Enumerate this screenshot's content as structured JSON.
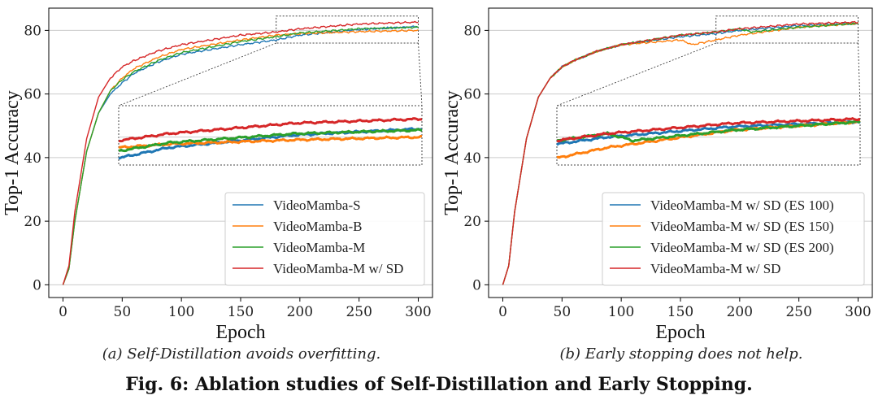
{
  "caption": "Fig. 6: Ablation studies of Self-Distillation and Early Stopping.",
  "colors": {
    "blue": "#1f77b4",
    "orange": "#ff7f0e",
    "green": "#2ca02c",
    "red": "#d62728",
    "grid": "#cccccc"
  },
  "chart_data": [
    {
      "type": "line",
      "subcaption": "(a) Self-Distillation avoids overfitting.",
      "xlabel": "Epoch",
      "ylabel": "Top-1 Accuracy",
      "xlim": [
        -12,
        312
      ],
      "ylim": [
        -4,
        87
      ],
      "xticks": [
        0,
        50,
        100,
        150,
        200,
        250,
        300
      ],
      "yticks": [
        0,
        20,
        40,
        60,
        80
      ],
      "grid": "y",
      "legend": "lower-right",
      "inset": {
        "xrange": [
          180,
          300
        ],
        "yrange": [
          76,
          84.5
        ]
      },
      "series": [
        {
          "name": "VideoMamba-S",
          "color": "#1f77b4",
          "x": [
            0,
            5,
            10,
            20,
            30,
            40,
            50,
            60,
            80,
            100,
            150,
            180,
            200,
            250,
            300
          ],
          "y": [
            0,
            5,
            20,
            42,
            54,
            60,
            63.5,
            66.5,
            70,
            72.5,
            75.5,
            77,
            78.5,
            80.3,
            81.2
          ]
        },
        {
          "name": "VideoMamba-B",
          "color": "#ff7f0e",
          "x": [
            0,
            5,
            10,
            20,
            30,
            40,
            50,
            60,
            80,
            100,
            150,
            180,
            200,
            250,
            300
          ],
          "y": [
            0,
            5,
            20,
            42,
            54,
            61,
            65,
            68,
            71.5,
            74,
            77,
            78.5,
            79,
            79.6,
            80
          ]
        },
        {
          "name": "VideoMamba-M",
          "color": "#2ca02c",
          "x": [
            0,
            5,
            10,
            20,
            30,
            40,
            50,
            60,
            80,
            100,
            150,
            180,
            200,
            250,
            300
          ],
          "y": [
            0,
            5,
            20,
            42,
            54,
            61,
            64.5,
            67,
            70.5,
            73,
            76.5,
            78,
            79.2,
            80.5,
            81
          ]
        },
        {
          "name": "VideoMamba-M w/ SD",
          "color": "#d62728",
          "x": [
            0,
            5,
            10,
            20,
            30,
            40,
            50,
            60,
            80,
            100,
            150,
            180,
            200,
            250,
            300
          ],
          "y": [
            0,
            6,
            23,
            46,
            59,
            65,
            68.5,
            70.5,
            73.5,
            75.5,
            78.5,
            79.5,
            80.5,
            82,
            82.6
          ]
        }
      ]
    },
    {
      "type": "line",
      "subcaption": "(b) Early stopping does not help.",
      "xlabel": "Epoch",
      "ylabel": "Top-1 Accuracy",
      "xlim": [
        -12,
        312
      ],
      "ylim": [
        -4,
        87
      ],
      "xticks": [
        0,
        50,
        100,
        150,
        200,
        250,
        300
      ],
      "yticks": [
        0,
        20,
        40,
        60,
        80
      ],
      "grid": "y",
      "legend": "lower-right",
      "inset": {
        "xrange": [
          180,
          300
        ],
        "yrange": [
          76,
          84.5
        ]
      },
      "series": [
        {
          "name": "VideoMamba-M w/ SD (ES 100)",
          "color": "#1f77b4",
          "x": [
            0,
            5,
            10,
            20,
            30,
            40,
            50,
            60,
            80,
            100,
            150,
            180,
            200,
            250,
            300
          ],
          "y": [
            0,
            6,
            23,
            46,
            59,
            65,
            68.5,
            70.5,
            73.5,
            75.5,
            78,
            79,
            80,
            81.5,
            82.2
          ]
        },
        {
          "name": "VideoMamba-M w/ SD (ES 150)",
          "color": "#ff7f0e",
          "x": [
            0,
            5,
            10,
            20,
            30,
            40,
            50,
            60,
            80,
            100,
            150,
            160,
            180,
            200,
            250,
            300
          ],
          "y": [
            0,
            6,
            23,
            46,
            59,
            65,
            68.5,
            70.5,
            73.5,
            75.5,
            77,
            75.5,
            77,
            78.5,
            81,
            82.2
          ]
        },
        {
          "name": "VideoMamba-M w/ SD (ES 200)",
          "color": "#2ca02c",
          "x": [
            0,
            5,
            10,
            20,
            30,
            40,
            50,
            60,
            80,
            100,
            150,
            180,
            200,
            210,
            250,
            300
          ],
          "y": [
            0,
            6,
            23,
            46,
            59,
            65,
            68.5,
            70.5,
            73.5,
            75.5,
            78.5,
            79.5,
            80.5,
            79.5,
            81,
            82.2
          ]
        },
        {
          "name": "VideoMamba-M w/ SD",
          "color": "#d62728",
          "x": [
            0,
            5,
            10,
            20,
            30,
            40,
            50,
            60,
            80,
            100,
            150,
            180,
            200,
            250,
            300
          ],
          "y": [
            0,
            6,
            23,
            46,
            59,
            65,
            68.5,
            70.5,
            73.5,
            75.5,
            78.5,
            79.5,
            80.5,
            82,
            82.6
          ]
        }
      ]
    }
  ]
}
